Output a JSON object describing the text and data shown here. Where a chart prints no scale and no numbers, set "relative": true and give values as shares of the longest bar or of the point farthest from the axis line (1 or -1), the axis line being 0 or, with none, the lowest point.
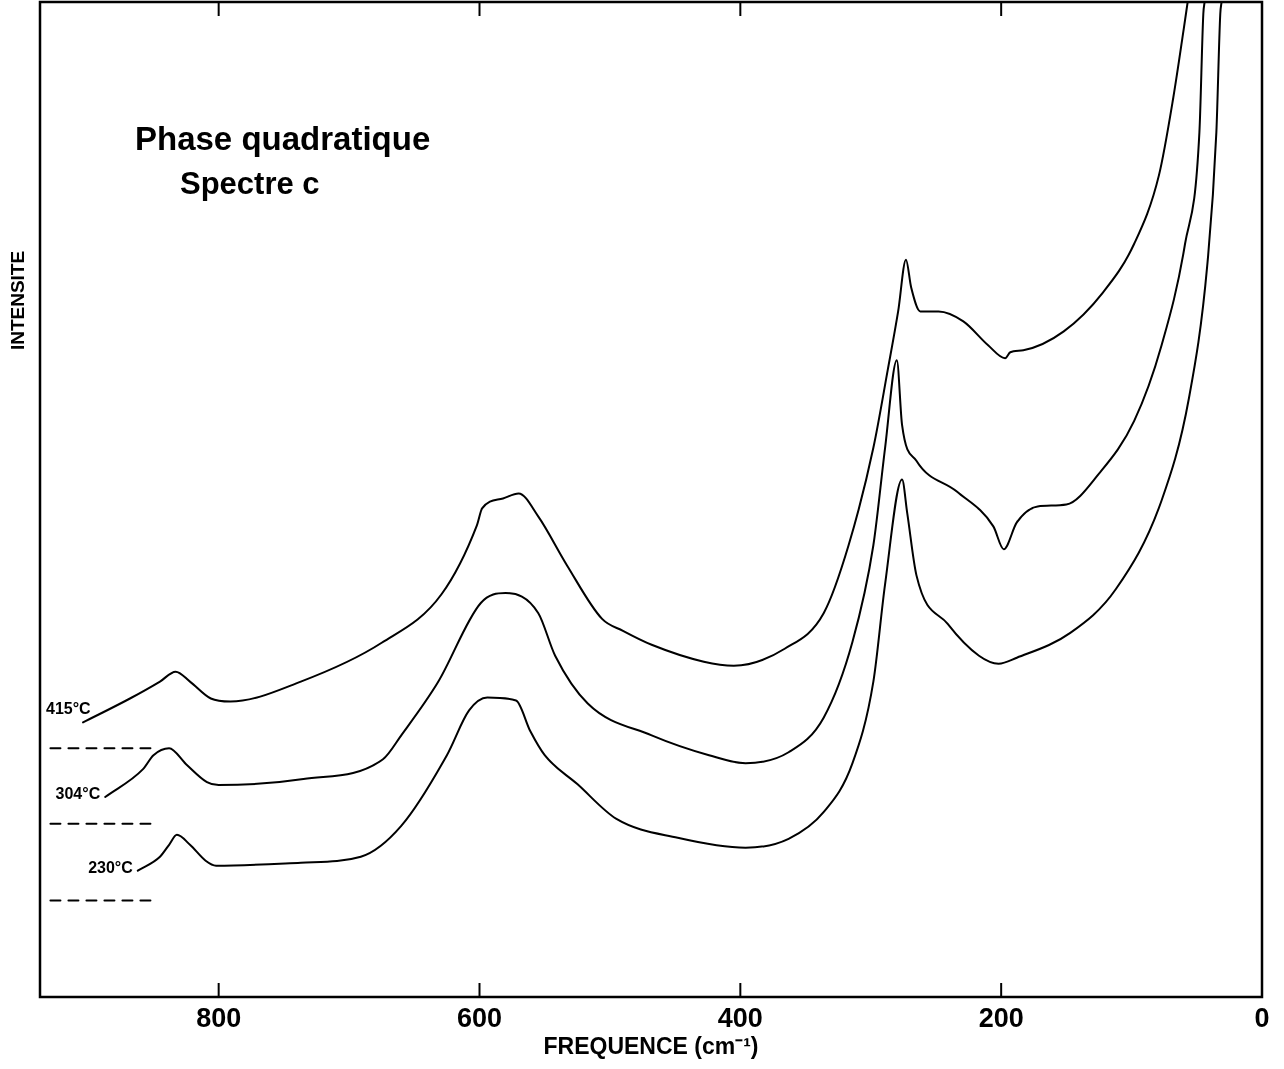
{
  "chart_data": {
    "type": "line",
    "title": "Phase quadratique",
    "subtitle": "Spectre c",
    "xlabel": "FREQUENCE (cm⁻¹)",
    "ylabel": "INTENSITE",
    "relative": true,
    "xlim": [
      937,
      0
    ],
    "xticks": [
      800,
      600,
      400,
      200,
      0
    ],
    "grid": false,
    "legend": false,
    "marker": "none",
    "line_style": "solid",
    "series": [
      {
        "name": "415°C",
        "color": "#000000",
        "x": [
          904,
          868,
          845,
          833,
          822,
          806,
          791,
          737,
          675,
          629,
          602,
          598,
          582,
          570,
          555,
          533,
          506,
          490,
          468,
          428,
          405,
          366,
          336,
          317,
          298,
          287,
          279,
          273,
          269,
          262,
          248,
          229,
          210,
          197,
          193,
          183,
          152,
          122,
          98,
          79,
          68,
          60,
          57
        ],
        "values": [
          0.276,
          0.3,
          0.317,
          0.327,
          0.317,
          0.3,
          0.297,
          0.317,
          0.356,
          0.405,
          0.474,
          0.491,
          0.501,
          0.506,
          0.483,
          0.434,
          0.38,
          0.368,
          0.354,
          0.337,
          0.333,
          0.35,
          0.386,
          0.454,
          0.552,
          0.63,
          0.689,
          0.741,
          0.713,
          0.689,
          0.689,
          0.679,
          0.655,
          0.642,
          0.648,
          0.65,
          0.669,
          0.708,
          0.757,
          0.826,
          0.904,
          0.973,
          1.0
        ]
      },
      {
        "name": "304°C",
        "color": "#000000",
        "x": [
          887,
          858,
          850,
          838,
          825,
          809,
          800,
          735,
          674,
          660,
          632,
          599,
          580,
          555,
          542,
          517,
          468,
          424,
          396,
          363,
          336,
          314,
          298,
          289,
          280,
          276,
          265,
          234,
          206,
          198,
          188,
          172,
          150,
          125,
          98,
          77,
          59,
          48,
          45,
          44
        ],
        "values": [
          0.201,
          0.229,
          0.243,
          0.25,
          0.234,
          0.216,
          0.213,
          0.219,
          0.239,
          0.263,
          0.316,
          0.396,
          0.406,
          0.386,
          0.343,
          0.295,
          0.263,
          0.243,
          0.235,
          0.246,
          0.281,
          0.357,
          0.454,
          0.552,
          0.64,
          0.575,
          0.539,
          0.508,
          0.473,
          0.45,
          0.477,
          0.493,
          0.495,
          0.526,
          0.579,
          0.655,
          0.757,
          0.869,
          0.988,
          1.0
        ]
      },
      {
        "name": "230°C",
        "color": "#000000",
        "x": [
          862,
          845,
          838,
          832,
          822,
          810,
          802,
          737,
          691,
          660,
          625,
          608,
          594,
          572,
          561,
          550,
          525,
          495,
          448,
          396,
          363,
          336,
          314,
          298,
          289,
          276,
          272,
          265,
          241,
          217,
          202,
          188,
          147,
          112,
          77,
          56,
          42,
          35,
          32,
          31
        ],
        "values": [
          0.127,
          0.141,
          0.153,
          0.163,
          0.153,
          0.137,
          0.132,
          0.135,
          0.141,
          0.172,
          0.243,
          0.288,
          0.301,
          0.298,
          0.267,
          0.243,
          0.214,
          0.179,
          0.16,
          0.15,
          0.159,
          0.186,
          0.235,
          0.317,
          0.415,
          0.52,
          0.486,
          0.424,
          0.375,
          0.343,
          0.335,
          0.341,
          0.366,
          0.41,
          0.499,
          0.602,
          0.735,
          0.869,
          0.988,
          1.0
        ]
      },
      {
        "color": "#000000",
        "line_style": "dashed",
        "x": [
          929,
          851
        ],
        "values": [
          0.25,
          0.25
        ]
      },
      {
        "color": "#000000",
        "line_style": "dashed",
        "x": [
          929,
          851
        ],
        "values": [
          0.174,
          0.174
        ]
      },
      {
        "color": "#000000",
        "line_style": "dashed",
        "x": [
          929,
          851
        ],
        "values": [
          0.097,
          0.097
        ]
      }
    ]
  }
}
